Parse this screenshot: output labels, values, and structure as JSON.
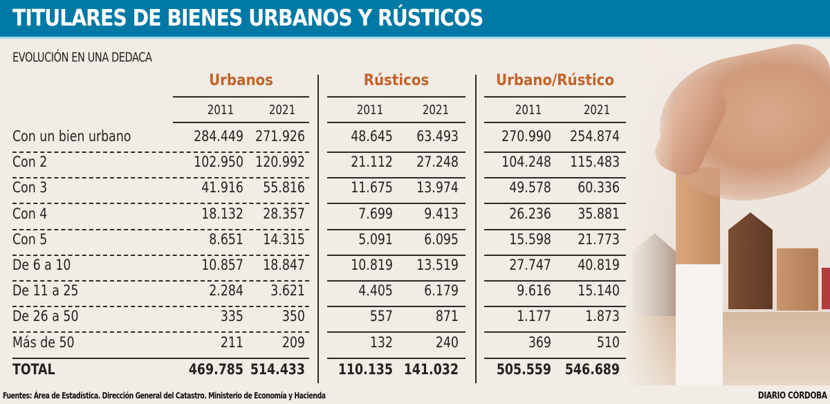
{
  "header": {
    "title": "TITULARES DE BIENES URBANOS Y RÚSTICOS",
    "subtitle": "EVOLUCIÓN EN UNA DEDACA"
  },
  "colors": {
    "title_bar": "#0079a5",
    "group_title": "#c2632a",
    "background": "#f1ece4"
  },
  "table": {
    "groups": [
      {
        "label": "Urbanos",
        "years": [
          "2011",
          "2021"
        ]
      },
      {
        "label": "Rústicos",
        "years": [
          "2011",
          "2021"
        ]
      },
      {
        "label": "Urbano/Rústico",
        "years": [
          "2011",
          "2021"
        ]
      }
    ],
    "rows": [
      {
        "label": "Con un bien urbano",
        "values": [
          "284.449",
          "271.926",
          "48.645",
          "63.493",
          "270.990",
          "254.874"
        ]
      },
      {
        "label": "Con 2",
        "values": [
          "102.950",
          "120.992",
          "21.112",
          "27.248",
          "104.248",
          "115.483"
        ]
      },
      {
        "label": "Con 3",
        "values": [
          "41.916",
          "55.816",
          "11.675",
          "13.974",
          "49.578",
          "60.336"
        ]
      },
      {
        "label": "Con 4",
        "values": [
          "18.132",
          "28.357",
          "7.699",
          "9.413",
          "26.236",
          "35.881"
        ]
      },
      {
        "label": "Con 5",
        "values": [
          "8.651",
          "14.315",
          "5.091",
          "6.095",
          "15.598",
          "21.773"
        ]
      },
      {
        "label": "De 6 a 10",
        "values": [
          "10.857",
          "18.847",
          "10.819",
          "13.519",
          "27.747",
          "40.819"
        ]
      },
      {
        "label": "De 11 a 25",
        "values": [
          "2.284",
          "3.621",
          "4.405",
          "6.179",
          "9.616",
          "15.140"
        ]
      },
      {
        "label": "De 26 a 50",
        "values": [
          "335",
          "350",
          "557",
          "871",
          "1.177",
          "1.873"
        ]
      },
      {
        "label": "Más de 50",
        "values": [
          "211",
          "209",
          "132",
          "240",
          "369",
          "510"
        ]
      }
    ],
    "total": {
      "label": "TOTAL",
      "values": [
        "469.785",
        "514.433",
        "110.135",
        "141.032",
        "505.559",
        "546.689"
      ]
    }
  },
  "footer": {
    "source": "Fuentes: Área de Estadística. Dirección General del Catastro. Ministerio de Economía y Hacienda",
    "credit": "DIARIO CÓRDOBA"
  },
  "photo": {
    "description": "hand placing wooden house blocks"
  }
}
